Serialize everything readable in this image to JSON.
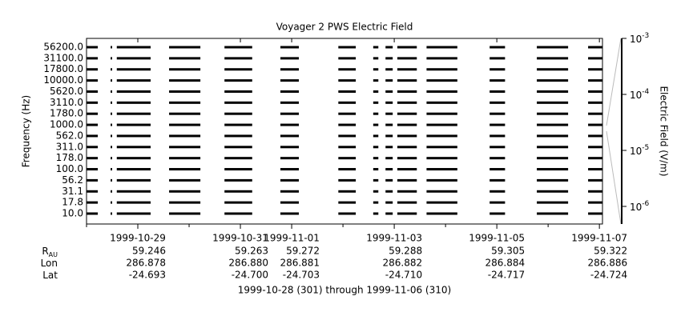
{
  "chart_data": {
    "type": "spectrogram",
    "title": "Voyager 2 PWS Electric Field",
    "y_label": "Frequency (Hz)",
    "y2_label": "Electric Field (V/m)",
    "footer": "1999-10-28 (301) through 1999-11-06 (310)",
    "categories": [
      "56200.0",
      "31100.0",
      "17800.0",
      "10000.0",
      "5620.0",
      "3110.0",
      "1780.0",
      "1000.0",
      "562.0",
      "311.0",
      "178.0",
      "100.0",
      "56.2",
      "31.1",
      "17.8",
      "10.0"
    ],
    "color": "#000000",
    "xlim": [
      0,
      10.06
    ],
    "xticks": [
      {
        "value": 1,
        "label": "1999-10-29"
      },
      {
        "value": 3,
        "label": "1999-10-31"
      },
      {
        "value": 4,
        "label": "1999-11-01"
      },
      {
        "value": 6,
        "label": "1999-11-03"
      },
      {
        "value": 8,
        "label": "1999-11-05"
      },
      {
        "value": 10,
        "label": "1999-11-07"
      }
    ],
    "minor_xticks": [
      0,
      2,
      5,
      7,
      9
    ],
    "observation_intervals": [
      [
        0.0,
        0.22
      ],
      [
        0.47,
        0.5
      ],
      [
        0.59,
        1.25
      ],
      [
        1.61,
        2.22
      ],
      [
        2.69,
        3.23
      ],
      [
        3.78,
        4.14
      ],
      [
        4.91,
        5.25
      ],
      [
        5.59,
        5.69
      ],
      [
        5.83,
        5.97
      ],
      [
        6.06,
        6.44
      ],
      [
        6.63,
        7.23
      ],
      [
        7.86,
        8.16
      ],
      [
        8.78,
        9.39
      ],
      [
        9.78,
        10.06
      ]
    ],
    "y2lim": [
      4.85e-07,
      0.001
    ],
    "y2ticks": [
      {
        "value": 0.001,
        "base": "10",
        "exponent": "-3"
      },
      {
        "value": 0.0001,
        "base": "10",
        "exponent": "-4"
      },
      {
        "value": 1e-05,
        "base": "10",
        "exponent": "-5"
      },
      {
        "value": 1e-06,
        "base": "10",
        "exponent": "-6"
      }
    ],
    "ephemeris": [
      {
        "label": "R",
        "subscript": "AU",
        "values": [
          "59.246",
          "59.263",
          "59.272",
          "59.288",
          "59.305",
          "59.322"
        ]
      },
      {
        "label": "Lon",
        "values": [
          "286.878",
          "286.880",
          "286.881",
          "286.882",
          "286.884",
          "286.886"
        ]
      },
      {
        "label": "Lat",
        "values": [
          "-24.693",
          "-24.700",
          "-24.703",
          "-24.710",
          "-24.717",
          "-24.724"
        ]
      }
    ]
  }
}
